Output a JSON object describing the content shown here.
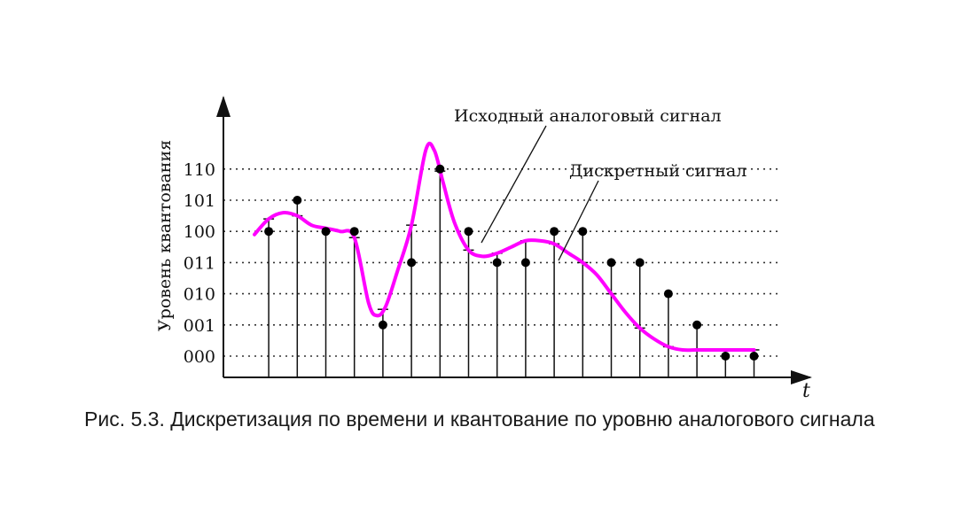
{
  "chart_data": {
    "type": "line",
    "ylabel": "Уровень квантования",
    "xlabel": "t",
    "y_levels": [
      "000",
      "001",
      "010",
      "011",
      "100",
      "101",
      "110"
    ],
    "series": [
      {
        "name": "Исходный аналоговый сигнал",
        "color": "#ff00ff",
        "x": [
          0.0,
          0.5,
          1.0,
          1.5,
          2.0,
          2.5,
          3.0,
          3.5,
          4.0,
          4.3,
          4.6,
          5.0,
          5.5,
          6.0,
          6.3,
          6.6,
          7.0,
          7.5,
          8.0,
          8.5,
          9.0,
          9.5,
          10.0,
          10.5,
          11.0,
          11.5,
          12.0,
          12.5,
          13.0,
          13.5,
          14.0,
          14.5,
          15.0,
          15.5,
          16.0,
          16.5,
          17.0,
          17.5
        ],
        "y": [
          3.9,
          4.4,
          4.6,
          4.5,
          4.2,
          4.1,
          4.0,
          3.8,
          1.7,
          1.3,
          1.6,
          2.7,
          4.2,
          6.6,
          6.6,
          5.6,
          4.3,
          3.4,
          3.2,
          3.3,
          3.5,
          3.7,
          3.7,
          3.6,
          3.3,
          3.0,
          2.6,
          2.0,
          1.4,
          0.9,
          0.55,
          0.3,
          0.2,
          0.2,
          0.2,
          0.2,
          0.2,
          0.2
        ]
      },
      {
        "name": "Дискретный сигнал",
        "color": "#000000",
        "x": [
          0.5,
          1.5,
          2.5,
          3.5,
          4.5,
          5.5,
          6.5,
          7.5,
          8.5,
          9.5,
          10.5,
          11.5,
          12.5,
          13.5,
          14.5,
          15.5,
          16.5,
          17.5
        ],
        "y": [
          4,
          5,
          4,
          4,
          1,
          3,
          6,
          4,
          3,
          3,
          4,
          4,
          3,
          3,
          2,
          1,
          0,
          0
        ]
      }
    ],
    "ylim": [
      0,
      7.5
    ],
    "xlim": [
      0,
      20
    ],
    "grid": "dotted horizontal lines at quantization levels",
    "annotations": [
      "Исходный аналоговый сигнал",
      "Дискретный сигнал"
    ]
  },
  "caption": "Рис. 5.3. Дискретизация по времени и квантование по уровню аналогового сигнала"
}
